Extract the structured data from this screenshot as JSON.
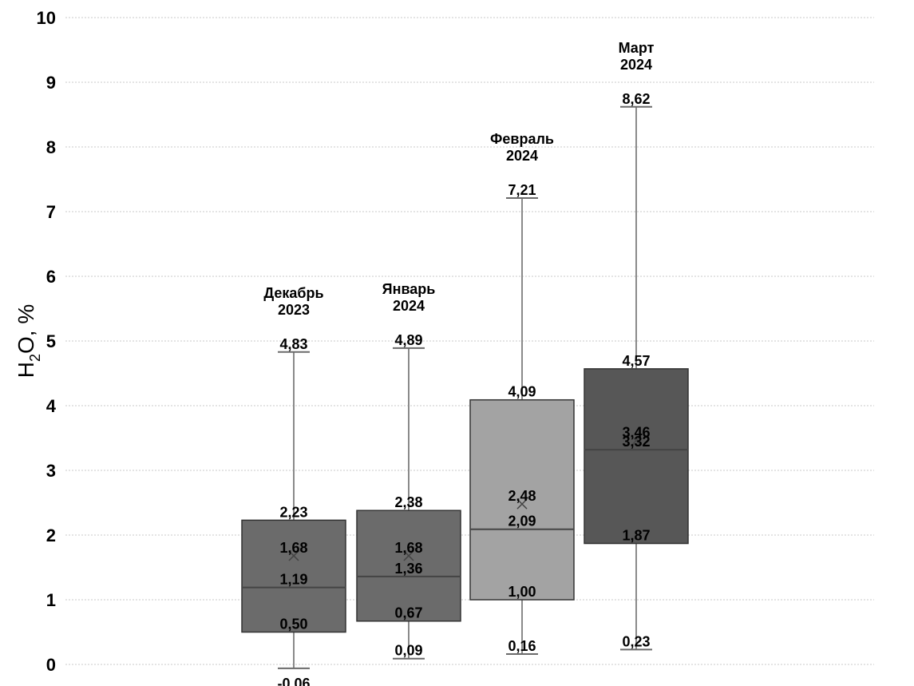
{
  "chart_data": {
    "type": "box",
    "ylabel_main": "H",
    "ylabel_sub": "2",
    "ylabel_rest": "O, %",
    "ylim": [
      0,
      10
    ],
    "yticks": [
      "0",
      "1",
      "2",
      "3",
      "4",
      "5",
      "6",
      "7",
      "8",
      "9",
      "10"
    ],
    "grid": true,
    "boxes": [
      {
        "title_line1": "Декабрь",
        "title_line2": "2023",
        "min": -0.06,
        "q1": 0.5,
        "median": 1.19,
        "mean": 1.68,
        "q3": 2.23,
        "max": 4.83,
        "min_label": "-0,06",
        "q1_label": "0,50",
        "median_label": "1,19",
        "mean_label": "1,68",
        "q3_label": "2,23",
        "max_label": "4,83",
        "color": "#6b6b6b"
      },
      {
        "title_line1": "Январь",
        "title_line2": "2024",
        "min": 0.09,
        "q1": 0.67,
        "median": 1.36,
        "mean": 1.68,
        "q3": 2.38,
        "max": 4.89,
        "min_label": "0,09",
        "q1_label": "0,67",
        "median_label": "1,36",
        "mean_label": "1,68",
        "q3_label": "2,38",
        "max_label": "4,89",
        "color": "#6b6b6b"
      },
      {
        "title_line1": "Февраль",
        "title_line2": "2024",
        "min": 0.16,
        "q1": 1.0,
        "median": 2.09,
        "mean": 2.48,
        "q3": 4.09,
        "max": 7.21,
        "min_label": "0,16",
        "q1_label": "1,00",
        "median_label": "2,09",
        "mean_label": "2,48",
        "q3_label": "4,09",
        "max_label": "7,21",
        "color": "#a3a3a3"
      },
      {
        "title_line1": "Март",
        "title_line2": "2024",
        "min": 0.23,
        "q1": 1.87,
        "median": 3.32,
        "mean": 3.46,
        "q3": 4.57,
        "max": 8.62,
        "min_label": "0,23",
        "q1_label": "1,87",
        "median_label": "3,32",
        "mean_label": "3,46",
        "q3_label": "4,57",
        "max_label": "8,62",
        "color": "#575757"
      }
    ]
  }
}
